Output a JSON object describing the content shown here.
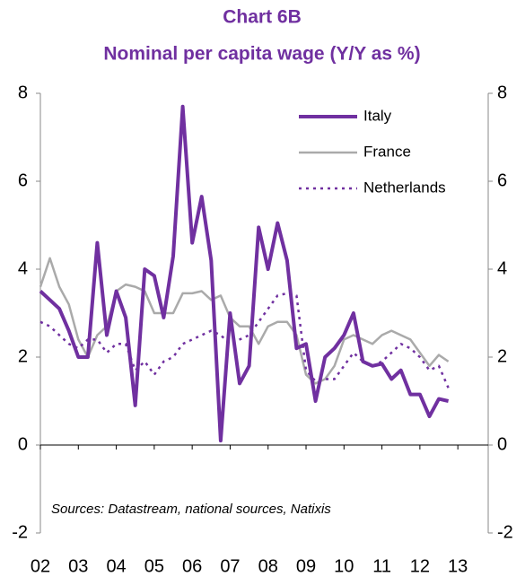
{
  "chart_data": {
    "type": "line",
    "title": "Chart 6B",
    "subtitle": "Nominal per capita wage (Y/Y as %)",
    "annotation": "Sources: Datastream, national sources, Natixis",
    "x": [
      2002,
      2002.25,
      2002.5,
      2002.75,
      2003,
      2003.25,
      2003.5,
      2003.75,
      2004,
      2004.25,
      2004.5,
      2004.75,
      2005,
      2005.25,
      2005.5,
      2005.75,
      2006,
      2006.25,
      2006.5,
      2006.75,
      2007,
      2007.25,
      2007.5,
      2007.75,
      2008,
      2008.25,
      2008.5,
      2008.75,
      2009,
      2009.25,
      2009.5,
      2009.75,
      2010,
      2010.25,
      2010.5,
      2010.75,
      2011,
      2011.25,
      2011.5,
      2011.75,
      2012,
      2012.25,
      2012.5,
      2012.75
    ],
    "series": [
      {
        "name": "Italy",
        "color": "#7030a0",
        "style": "solid",
        "values": [
          3.5,
          3.3,
          3.1,
          2.6,
          2.0,
          2.0,
          4.6,
          2.5,
          3.5,
          2.9,
          0.9,
          4.0,
          3.85,
          2.9,
          4.3,
          7.7,
          4.6,
          5.65,
          4.2,
          0.1,
          3.0,
          1.4,
          1.8,
          4.95,
          4.0,
          5.05,
          4.2,
          2.2,
          2.3,
          1.0,
          2.0,
          2.2,
          2.5,
          3.0,
          1.9,
          1.8,
          1.85,
          1.5,
          1.7,
          1.15,
          1.15,
          0.65,
          1.05,
          1.0
        ]
      },
      {
        "name": "France",
        "color": "#aaaaaa",
        "style": "solid",
        "values": [
          3.6,
          4.25,
          3.6,
          3.2,
          2.4,
          2.0,
          2.5,
          2.7,
          3.5,
          3.65,
          3.6,
          3.5,
          3.0,
          3.0,
          3.0,
          3.45,
          3.45,
          3.5,
          3.3,
          3.4,
          2.9,
          2.7,
          2.7,
          2.3,
          2.7,
          2.8,
          2.8,
          2.5,
          1.6,
          1.4,
          1.5,
          1.8,
          2.4,
          2.5,
          2.4,
          2.3,
          2.5,
          2.6,
          2.5,
          2.4,
          2.1,
          1.8,
          2.05,
          1.9
        ]
      },
      {
        "name": "Netherlands",
        "color": "#7030a0",
        "style": "dotted",
        "values": [
          2.8,
          2.7,
          2.5,
          2.3,
          2.2,
          2.4,
          2.4,
          2.1,
          2.3,
          2.3,
          1.7,
          1.9,
          1.6,
          1.9,
          2.0,
          2.3,
          2.4,
          2.5,
          2.6,
          2.5,
          2.3,
          2.4,
          2.5,
          2.8,
          3.1,
          3.4,
          3.45,
          3.4,
          1.7,
          1.45,
          1.5,
          1.5,
          1.8,
          2.1,
          1.9,
          1.8,
          1.9,
          2.1,
          2.3,
          2.2,
          2.0,
          1.7,
          1.8,
          1.3
        ]
      }
    ],
    "xlim": [
      2002,
      2013.8
    ],
    "xticks": [
      {
        "value": 2002,
        "label": "02"
      },
      {
        "value": 2003,
        "label": "03"
      },
      {
        "value": 2004,
        "label": "04"
      },
      {
        "value": 2005,
        "label": "05"
      },
      {
        "value": 2006,
        "label": "06"
      },
      {
        "value": 2007,
        "label": "07"
      },
      {
        "value": 2008,
        "label": "08"
      },
      {
        "value": 2009,
        "label": "09"
      },
      {
        "value": 2010,
        "label": "10"
      },
      {
        "value": 2011,
        "label": "11"
      },
      {
        "value": 2012,
        "label": "12"
      },
      {
        "value": 2013,
        "label": "13"
      }
    ],
    "ylim": [
      -2,
      8
    ],
    "yticks": [
      -2,
      0,
      2,
      4,
      6,
      8
    ],
    "y2lim": [
      -2,
      8
    ],
    "y2ticks": [
      -2,
      0,
      2,
      4,
      6,
      8
    ]
  }
}
